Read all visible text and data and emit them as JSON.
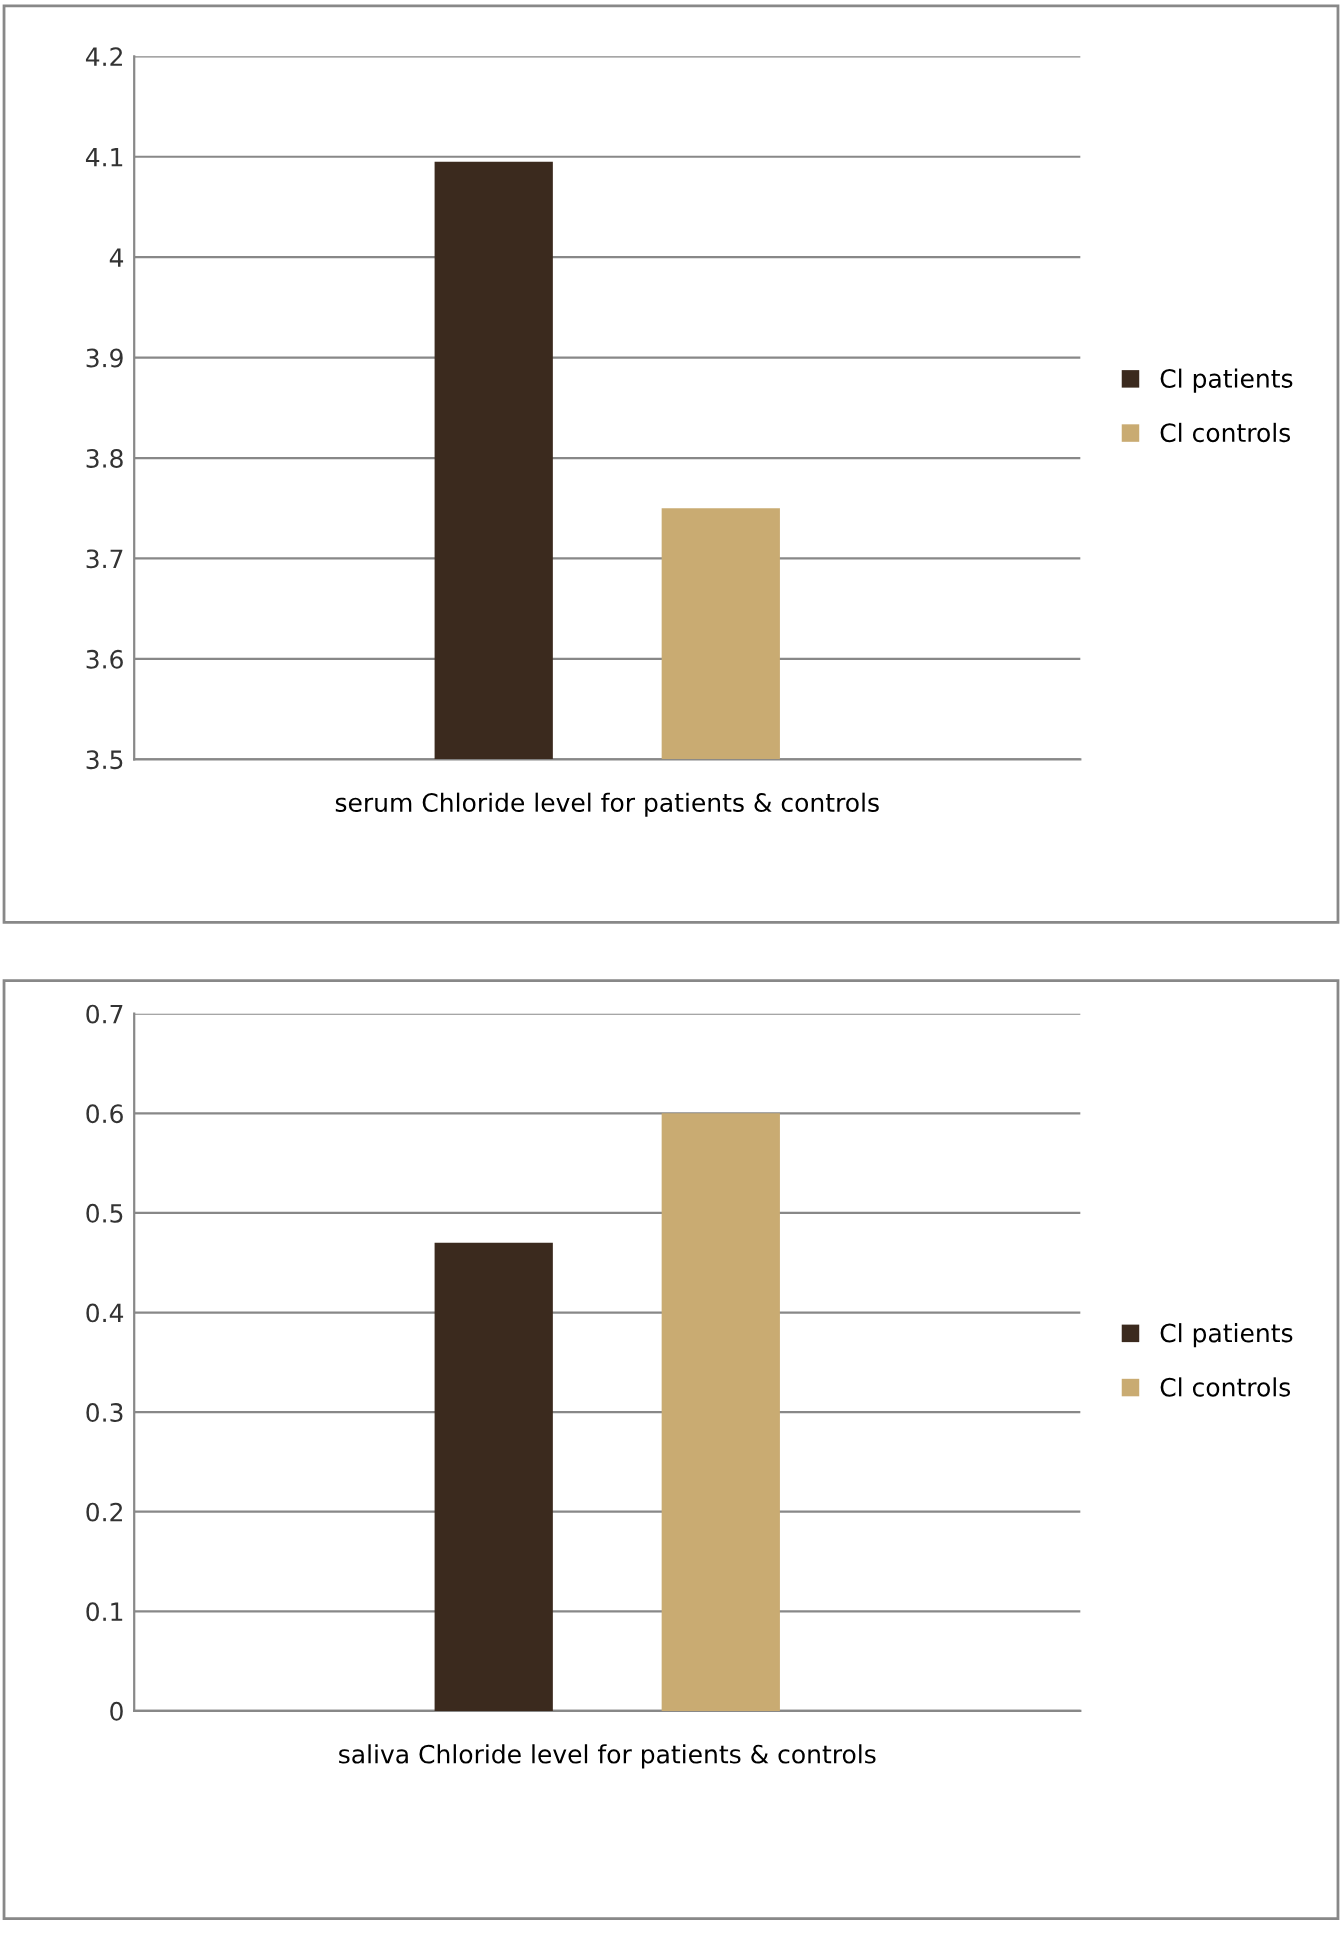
{
  "chart_data": [
    {
      "type": "bar",
      "categories": [
        "serum Chloride level for patients & controls"
      ],
      "series": [
        {
          "name": "Cl patients",
          "color": "#3b2a1e",
          "values": [
            4.095
          ]
        },
        {
          "name": "Cl controls",
          "color": "#c9ab72",
          "values": [
            3.75
          ]
        }
      ],
      "ylim": [
        3.5,
        4.2
      ],
      "yticks": [
        3.5,
        3.6,
        3.7,
        3.8,
        3.9,
        4,
        4.1,
        4.2
      ],
      "grid": "y",
      "legend": "right"
    },
    {
      "type": "bar",
      "categories": [
        "saliva Chloride level for patients & controls"
      ],
      "series": [
        {
          "name": "Cl patients",
          "color": "#3b2a1e",
          "values": [
            0.47
          ]
        },
        {
          "name": "Cl controls",
          "color": "#c9ab72",
          "values": [
            0.6
          ]
        }
      ],
      "ylim": [
        0,
        0.7
      ],
      "yticks": [
        0,
        0.1,
        0.2,
        0.3,
        0.4,
        0.5,
        0.6,
        0.7
      ],
      "grid": "y",
      "legend": "right"
    }
  ]
}
